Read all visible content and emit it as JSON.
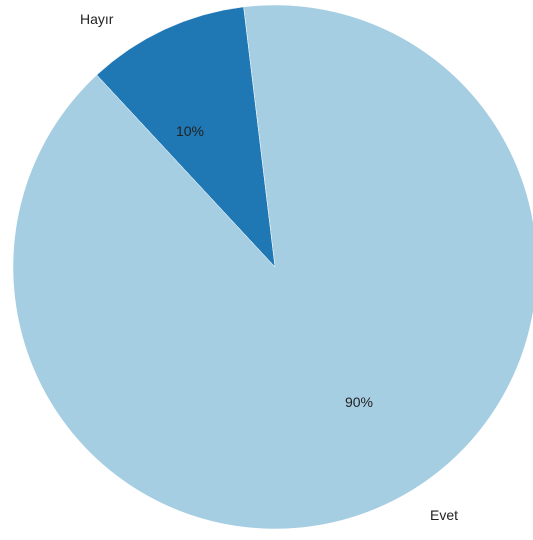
{
  "chart_data": {
    "type": "pie",
    "title": "",
    "slices": [
      {
        "label": "Hayır",
        "value": 10,
        "value_label": "10%",
        "color": "#1f78b4"
      },
      {
        "label": "Evet",
        "value": 90,
        "value_label": "90%",
        "color": "#a6cee3"
      }
    ],
    "start": "top, clockwise from about 11 o'clock",
    "legend": "none"
  }
}
